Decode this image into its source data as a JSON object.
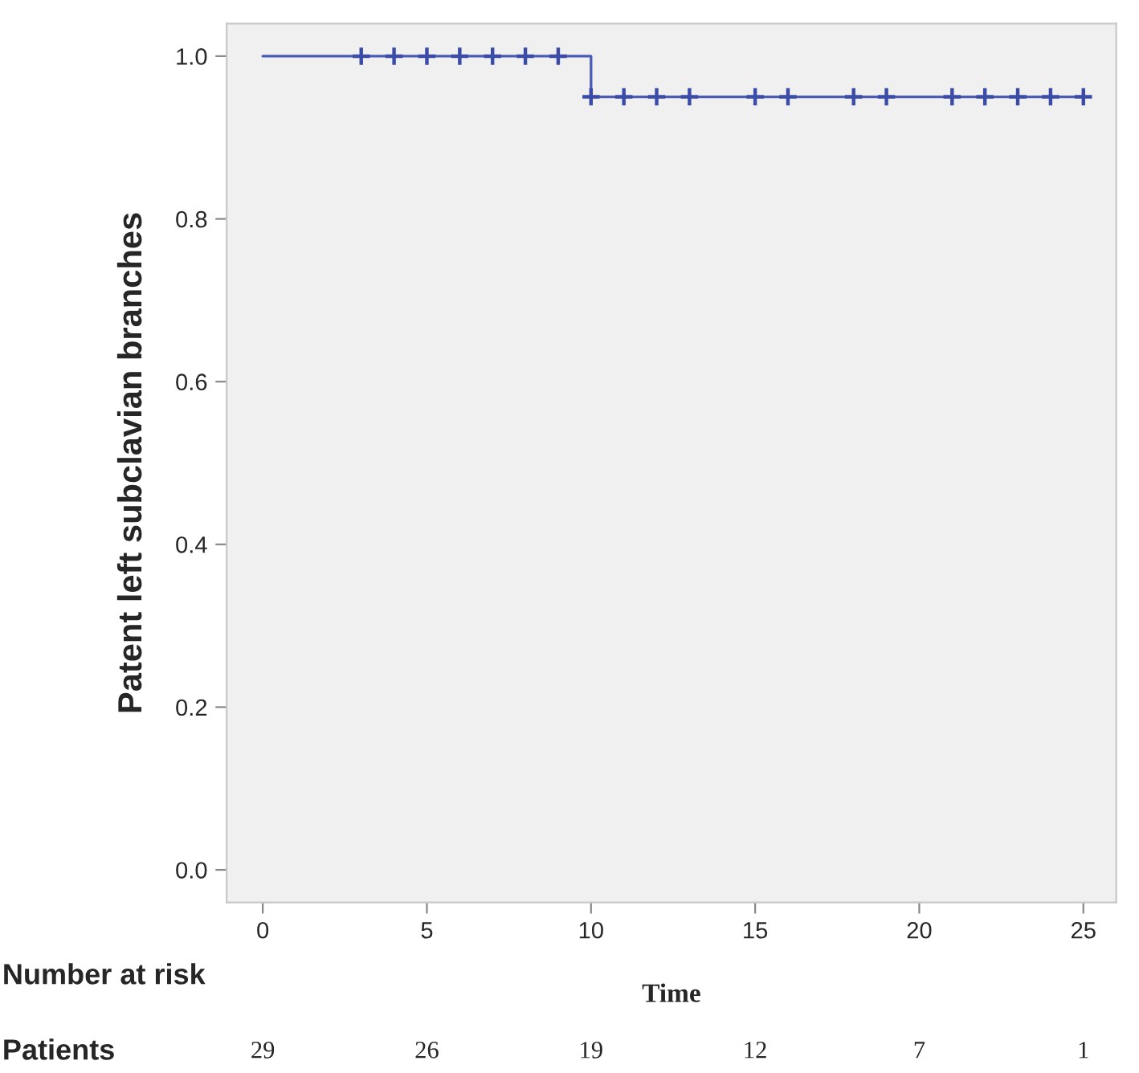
{
  "chart_data": {
    "type": "step",
    "xlabel": "Time",
    "ylabel": "Patent left subclavian branches",
    "xlim": [
      -1.1,
      26
    ],
    "ylim": [
      -0.04,
      1.04
    ],
    "xticks": [
      0,
      5,
      10,
      15,
      20,
      25
    ],
    "yticks": [
      {
        "value": 0,
        "label": "0.0"
      },
      {
        "value": 0.2,
        "label": "0.2"
      },
      {
        "value": 0.4,
        "label": "0.4"
      },
      {
        "value": 0.6,
        "label": "0.6"
      },
      {
        "value": 0.8,
        "label": "0.8"
      },
      {
        "value": 1,
        "label": "1.0"
      }
    ],
    "grid": false,
    "legend": false,
    "series": [
      {
        "color": "#4a5cb4",
        "x": [
          0,
          10,
          25
        ],
        "values": [
          1.0,
          0.95,
          0.95
        ],
        "marker": "none"
      },
      {
        "type": "scatter",
        "color": "#3a4ca8",
        "marker": "cross",
        "x": [
          3,
          4,
          5,
          6,
          7,
          8,
          9,
          10,
          11,
          12,
          13,
          15,
          16,
          18,
          19,
          21,
          22,
          23,
          24,
          25
        ],
        "values": [
          1.0,
          1.0,
          1.0,
          1.0,
          1.0,
          1.0,
          1.0,
          0.95,
          0.95,
          0.95,
          0.95,
          0.95,
          0.95,
          0.95,
          0.95,
          0.95,
          0.95,
          0.95,
          0.95,
          0.95
        ]
      }
    ],
    "annotations": [
      "Number at risk",
      "Patients",
      "29",
      "26",
      "19",
      "12",
      "7",
      "1"
    ]
  }
}
